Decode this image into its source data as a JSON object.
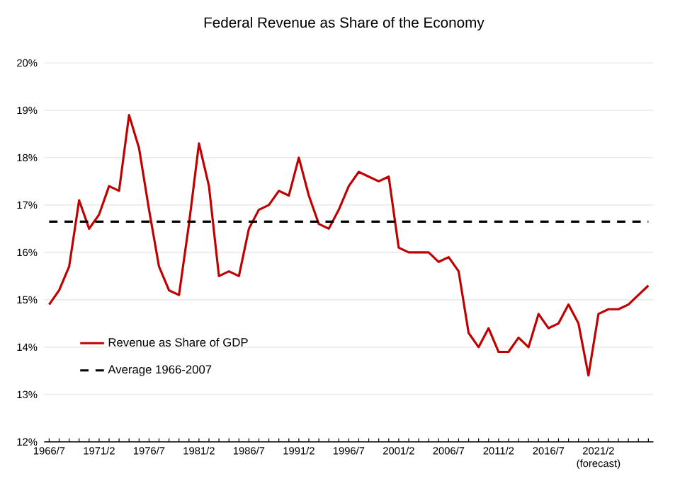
{
  "chart_data": {
    "type": "line",
    "title": "Federal Revenue as Share of the Economy",
    "categories": [
      "1966/7",
      null,
      null,
      null,
      null,
      "1971/2",
      null,
      null,
      null,
      null,
      "1976/7",
      null,
      null,
      null,
      null,
      "1981/2",
      null,
      null,
      null,
      null,
      "1986/7",
      null,
      null,
      null,
      null,
      "1991/2",
      null,
      null,
      null,
      null,
      "1996/7",
      null,
      null,
      null,
      null,
      "2001/2",
      null,
      null,
      null,
      null,
      "2006/7",
      null,
      null,
      null,
      null,
      "2011/2",
      null,
      null,
      null,
      null,
      "2016/7",
      null,
      null,
      null,
      null,
      "2021/2 (forecast)",
      null,
      null,
      null,
      null,
      null
    ],
    "series": [
      {
        "name": "Revenue as Share of GDP",
        "color": "#c00000",
        "values": [
          14.9,
          15.2,
          15.7,
          17.1,
          16.5,
          16.8,
          17.4,
          17.3,
          18.9,
          18.2,
          16.9,
          15.7,
          15.2,
          15.1,
          16.6,
          18.3,
          17.4,
          15.5,
          15.6,
          15.5,
          16.5,
          16.9,
          17.0,
          17.3,
          17.2,
          18.0,
          17.2,
          16.6,
          16.5,
          16.9,
          17.4,
          17.7,
          17.6,
          17.5,
          17.6,
          16.1,
          16.0,
          16.0,
          16.0,
          15.8,
          15.9,
          15.6,
          14.3,
          14.0,
          14.4,
          13.9,
          13.9,
          14.2,
          14.0,
          14.7,
          14.4,
          14.5,
          14.9,
          14.5,
          13.4,
          14.7,
          14.8,
          14.8,
          14.9,
          15.1,
          15.3
        ]
      }
    ],
    "ref_lines": [
      {
        "axis": "y",
        "value": 16.65,
        "label": "Average 1966-2007",
        "color": "#000000",
        "line_style": "dashed"
      }
    ],
    "ylim": [
      12,
      20
    ],
    "yticks": [
      {
        "value": 12,
        "label": "12%"
      },
      {
        "value": 13,
        "label": "13%"
      },
      {
        "value": 14,
        "label": "14%"
      },
      {
        "value": 15,
        "label": "15%"
      },
      {
        "value": 16,
        "label": "16%"
      },
      {
        "value": 17,
        "label": "17%"
      },
      {
        "value": 18,
        "label": "18%"
      },
      {
        "value": 19,
        "label": "19%"
      },
      {
        "value": 20,
        "label": "20%"
      }
    ],
    "grid": "y",
    "legend": "bottom left",
    "marker": "none",
    "line_style": "solid"
  }
}
